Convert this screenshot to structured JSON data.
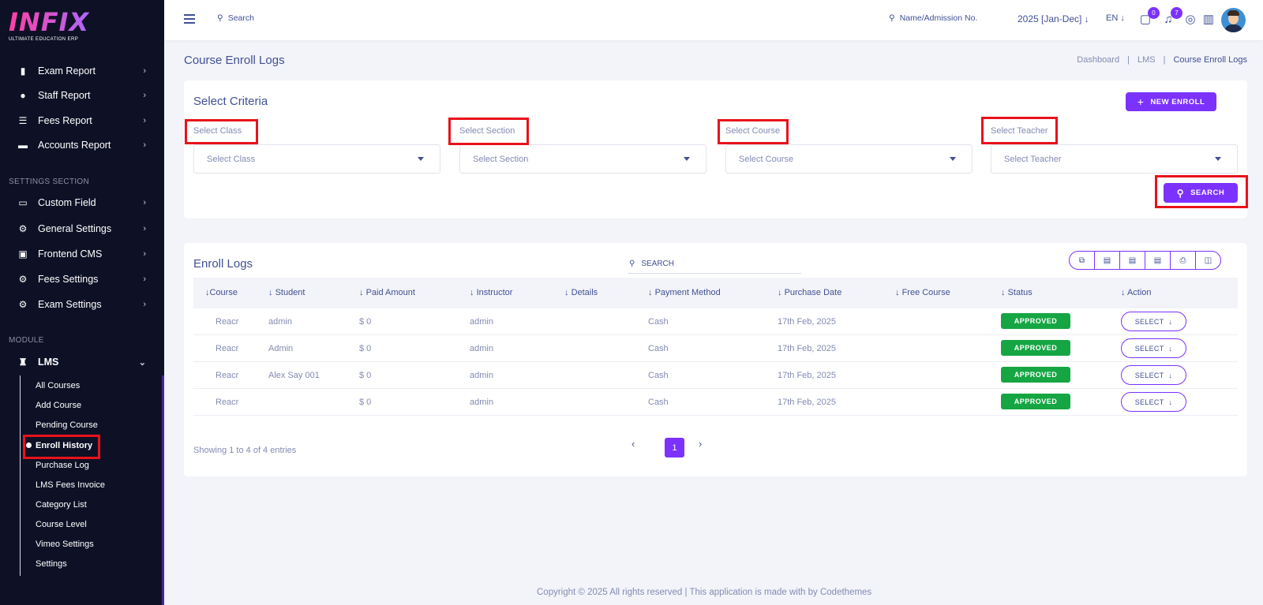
{
  "logo": {
    "word": "INFIX",
    "tagline": "ULTIMATE EDUCATION ERP"
  },
  "sidebar": {
    "reports": [
      {
        "label": "Exam Report",
        "icon": "book-icon"
      },
      {
        "label": "Staff Report",
        "icon": "user-icon"
      },
      {
        "label": "Fees Report",
        "icon": "list-icon"
      },
      {
        "label": "Accounts Report",
        "icon": "money-icon"
      }
    ],
    "settings_section_title": "SETTINGS SECTION",
    "settings": [
      {
        "label": "Custom Field",
        "icon": "bed-icon"
      },
      {
        "label": "General Settings",
        "icon": "gears-icon"
      },
      {
        "label": "Frontend CMS",
        "icon": "cms-icon"
      },
      {
        "label": "Fees Settings",
        "icon": "gears-icon"
      },
      {
        "label": "Exam Settings",
        "icon": "gears-icon"
      }
    ],
    "module_section_title": "MODULE",
    "lms_label": "LMS",
    "lms_items": [
      "All Courses",
      "Add Course",
      "Pending Course",
      "Enroll History",
      "Purchase Log",
      "LMS Fees Invoice",
      "Category List",
      "Course Level",
      "Vimeo Settings",
      "Settings"
    ]
  },
  "header": {
    "search_label": "Search",
    "student_search_label": "Name/Admission No.",
    "year_label": "2025 [Jan-Dec]",
    "lang_label": "EN",
    "messages_count": "0",
    "notifications_count": "7"
  },
  "page": {
    "title": "Course Enroll Logs",
    "breadcrumb": [
      "Dashboard",
      "LMS",
      "Course Enroll Logs"
    ]
  },
  "criteria": {
    "title": "Select Criteria",
    "new_enroll_label": "NEW ENROLL",
    "fields": [
      {
        "label": "Select Class",
        "placeholder": "Select Class"
      },
      {
        "label": "Select Section",
        "placeholder": "Select Section"
      },
      {
        "label": "Select Course",
        "placeholder": "Select Course"
      },
      {
        "label": "Select Teacher",
        "placeholder": "Select Teacher"
      }
    ],
    "search_label": "SEARCH"
  },
  "logs": {
    "title": "Enroll Logs",
    "search_placeholder": "SEARCH",
    "columns": [
      "Course",
      "Student",
      "Paid Amount",
      "Instructor",
      "Details",
      "Payment Method",
      "Purchase Date",
      "Free Course",
      "Status",
      "Action"
    ],
    "rows": [
      {
        "course": "Reacr",
        "student": "admin",
        "paid": "$ 0",
        "instructor": "admin",
        "method": "Cash",
        "date": "17th Feb, 2025",
        "status": "APPROVED",
        "action": "SELECT"
      },
      {
        "course": "Reacr",
        "student": "Admin",
        "paid": "$ 0",
        "instructor": "admin",
        "method": "Cash",
        "date": "17th Feb, 2025",
        "status": "APPROVED",
        "action": "SELECT"
      },
      {
        "course": "Reacr",
        "student": "Alex Say 001",
        "paid": "$ 0",
        "instructor": "admin",
        "method": "Cash",
        "date": "17th Feb, 2025",
        "status": "APPROVED",
        "action": "SELECT"
      },
      {
        "course": "Reacr",
        "student": "",
        "paid": "$ 0",
        "instructor": "admin",
        "method": "Cash",
        "date": "17th Feb, 2025",
        "status": "APPROVED",
        "action": "SELECT"
      }
    ],
    "showing": "Showing 1 to 4 of 4 entries",
    "current_page": "1"
  },
  "footer": "Copyright © 2025 All rights reserved | This application is made with by Codethemes",
  "colors": {
    "accent": "#7c32ff",
    "sidebar_bg": "#0e1126",
    "approved": "#15a643",
    "highlight": "#e8121b",
    "text": "#415094"
  }
}
